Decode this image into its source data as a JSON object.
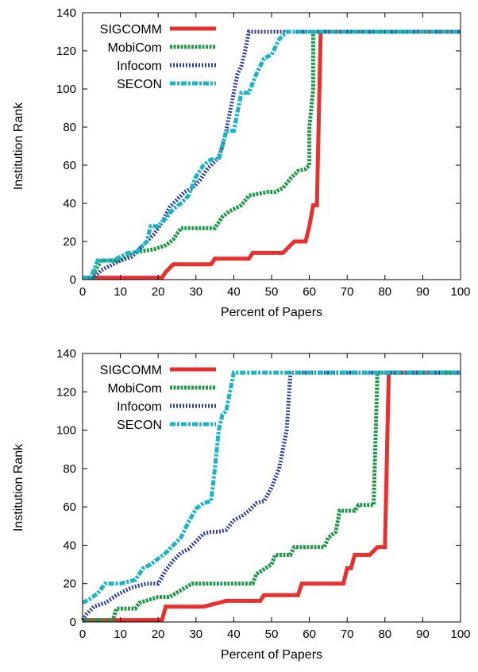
{
  "chart_data": [
    {
      "type": "line",
      "xlabel": "Percent of Papers",
      "ylabel": "Institution Rank",
      "xlim": [
        0,
        100
      ],
      "ylim": [
        0,
        140
      ],
      "x_ticks": [
        "0",
        "10",
        "20",
        "30",
        "40",
        "50",
        "60",
        "70",
        "80",
        "90",
        "100"
      ],
      "y_ticks": [
        "0",
        "20",
        "40",
        "60",
        "80",
        "100",
        "120",
        "140"
      ],
      "legend_position": "top-left",
      "grid": false,
      "series": [
        {
          "name": "SIGCOMM",
          "color": "#e8302e",
          "style": "solid",
          "x": [
            0,
            21,
            22,
            24,
            34,
            35,
            44,
            45,
            53,
            56,
            59,
            60,
            61,
            62,
            63,
            100
          ],
          "y": [
            1,
            1,
            4,
            8,
            8,
            11,
            11,
            14,
            14,
            20,
            20,
            28,
            39,
            39,
            130,
            130
          ]
        },
        {
          "name": "MobiCom",
          "color": "#1f9a48",
          "style": "dense-dots",
          "x": [
            0,
            3,
            3,
            5,
            10,
            13,
            19,
            22,
            24,
            26,
            35,
            37,
            39,
            42,
            44,
            49,
            51,
            53,
            55,
            57,
            59,
            60,
            60,
            61,
            61,
            100
          ],
          "y": [
            1,
            1,
            4,
            10,
            10,
            14,
            16,
            18,
            21,
            27,
            27,
            33,
            36,
            39,
            44,
            46,
            46,
            48,
            53,
            57,
            58,
            60,
            80,
            100,
            130,
            130
          ]
        },
        {
          "name": "Infocom",
          "color": "#2e3f9a",
          "style": "dots",
          "x": [
            0,
            3,
            5,
            10,
            13,
            16,
            19,
            21,
            23,
            25,
            27,
            29,
            31,
            33,
            35,
            36,
            37,
            38,
            39,
            40,
            41,
            42,
            43,
            44,
            100
          ],
          "y": [
            1,
            1,
            5,
            10,
            12,
            18,
            24,
            30,
            38,
            42,
            46,
            48,
            52,
            58,
            62,
            64,
            70,
            78,
            88,
            98,
            108,
            112,
            120,
            130,
            130
          ]
        },
        {
          "name": "SECON",
          "color": "#1ab4c8",
          "style": "dash-dot",
          "x": [
            0,
            2,
            3,
            4,
            8,
            12,
            14,
            17,
            18,
            20,
            22,
            24,
            26,
            28,
            30,
            32,
            34,
            36,
            38,
            40,
            42,
            44,
            46,
            48,
            50,
            52,
            54,
            100
          ],
          "y": [
            1,
            1,
            5,
            10,
            10,
            14,
            14,
            20,
            28,
            28,
            32,
            37,
            40,
            44,
            54,
            60,
            63,
            63,
            78,
            78,
            98,
            98,
            108,
            116,
            118,
            126,
            130,
            130
          ]
        }
      ]
    },
    {
      "type": "line",
      "xlabel": "Percent of Papers",
      "ylabel": "Institution Rank",
      "xlim": [
        0,
        100
      ],
      "ylim": [
        0,
        140
      ],
      "x_ticks": [
        "0",
        "10",
        "20",
        "30",
        "40",
        "50",
        "60",
        "70",
        "80",
        "90",
        "100"
      ],
      "y_ticks": [
        "0",
        "20",
        "40",
        "60",
        "80",
        "100",
        "120",
        "140"
      ],
      "legend_position": "top-left",
      "grid": false,
      "series": [
        {
          "name": "SIGCOMM",
          "color": "#e8302e",
          "style": "solid",
          "x": [
            0,
            21,
            22,
            32,
            34,
            36,
            38,
            47,
            48,
            57,
            58,
            69,
            70,
            71,
            72,
            76,
            78,
            80,
            81,
            100
          ],
          "y": [
            1,
            1,
            8,
            8,
            9,
            10,
            11,
            11,
            14,
            14,
            20,
            20,
            28,
            28,
            35,
            35,
            39,
            39,
            130,
            130
          ]
        },
        {
          "name": "MobiCom",
          "color": "#1f9a48",
          "style": "dense-dots",
          "x": [
            0,
            8,
            9,
            14,
            15,
            20,
            23,
            29,
            30,
            45,
            46,
            50,
            51,
            55,
            56,
            64,
            65,
            67,
            68,
            72,
            73,
            77,
            78,
            100
          ],
          "y": [
            1,
            1,
            7,
            7,
            10,
            13,
            13,
            20,
            20,
            20,
            25,
            30,
            35,
            35,
            39,
            39,
            44,
            47,
            58,
            58,
            61,
            61,
            130,
            130
          ]
        },
        {
          "name": "Infocom",
          "color": "#2e3f9a",
          "style": "dots",
          "x": [
            0,
            1,
            3,
            6,
            9,
            13,
            17,
            20,
            22,
            24,
            26,
            28,
            30,
            32,
            34,
            36,
            38,
            40,
            42,
            44,
            46,
            48,
            50,
            52,
            54,
            55,
            100
          ],
          "y": [
            1,
            4,
            8,
            10,
            14,
            18,
            20,
            20,
            27,
            32,
            36,
            38,
            42,
            46,
            47,
            47,
            48,
            53,
            55,
            58,
            62,
            63,
            70,
            80,
            100,
            130,
            130
          ]
        },
        {
          "name": "SECON",
          "color": "#1ab4c8",
          "style": "dash-dot",
          "x": [
            0,
            2,
            4,
            6,
            10,
            14,
            16,
            18,
            20,
            22,
            24,
            26,
            28,
            30,
            32,
            34,
            35,
            36,
            37,
            38,
            39,
            40,
            100
          ],
          "y": [
            10,
            12,
            15,
            20,
            20,
            22,
            28,
            30,
            33,
            36,
            40,
            44,
            52,
            59,
            62,
            63,
            80,
            100,
            108,
            110,
            120,
            130,
            130
          ]
        }
      ]
    }
  ]
}
